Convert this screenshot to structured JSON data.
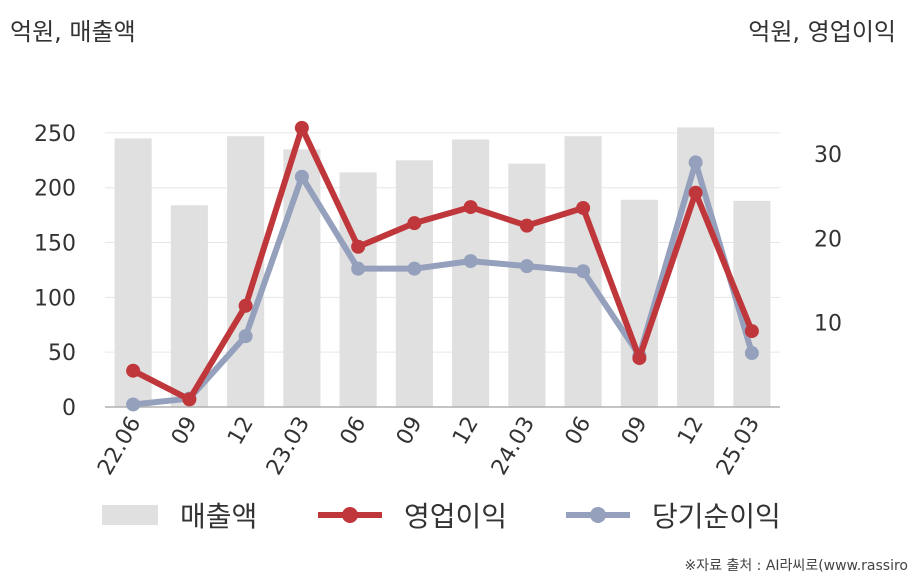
{
  "units": {
    "left": "억원, 매출액",
    "right": "억원, 영업이익"
  },
  "source": "※자료 출처 : AI라씨로(www.rassiro",
  "chart_data": {
    "type": "bar",
    "categories": [
      "22.06",
      "09",
      "12",
      "23.03",
      "06",
      "09",
      "12",
      "24.03",
      "06",
      "09",
      "12",
      "25.03"
    ],
    "y_left": {
      "ticks": [
        0,
        50,
        100,
        150,
        200,
        250
      ],
      "range": [
        0,
        280
      ]
    },
    "y_right": {
      "ticks": [
        10,
        20,
        30
      ],
      "range": [
        0,
        36.4
      ]
    },
    "grid": true,
    "legend_position": "bottom",
    "series": [
      {
        "name": "매출액",
        "type": "bar",
        "axis": "left",
        "color": "#e0e0e0",
        "values": [
          245,
          184,
          247,
          235,
          214,
          225,
          244,
          222,
          247,
          189,
          255,
          188
        ]
      },
      {
        "name": "영업이익",
        "type": "line",
        "axis": "right",
        "color": "#c0373b",
        "values": [
          4.3,
          0.9,
          12.0,
          33.1,
          19.0,
          21.8,
          23.7,
          21.5,
          23.6,
          5.8,
          25.4,
          9.0
        ]
      },
      {
        "name": "당기순이익",
        "type": "line",
        "axis": "right",
        "color": "#94a0bc",
        "values": [
          0.3,
          1.0,
          8.4,
          27.3,
          16.4,
          16.4,
          17.3,
          16.7,
          16.1,
          6.1,
          29.0,
          6.4
        ]
      }
    ]
  }
}
